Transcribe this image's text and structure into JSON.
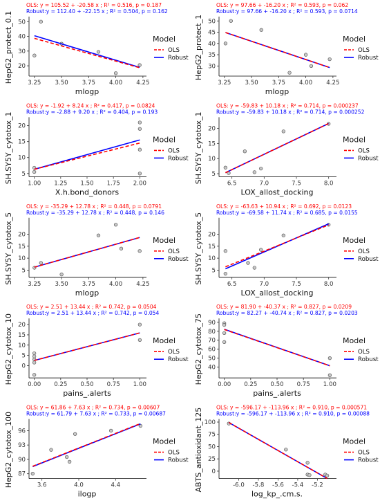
{
  "colors": {
    "ols": "#ff0000",
    "robust": "#0000ff",
    "point_fill": "#c8c8c8",
    "point_stroke": "#555555"
  },
  "chart_data": [
    {
      "type": "scatter",
      "ols_eq": "OLS: y = 105.52 + -20.58 x ; R² = 0.516, p = 0.187",
      "robust_eq": "Robust:y = 112.40 + -22.15 x ; R² = 0.504, p = 0.162",
      "xlabel": "mlogp",
      "ylabel": "HepG2_protect_0.1",
      "xlim": [
        3.2,
        4.27
      ],
      "ylim": [
        13,
        52
      ],
      "xticks": [
        {
          "v": 3.25,
          "label": "3.25"
        },
        {
          "v": 3.5,
          "label": "3.50"
        },
        {
          "v": 3.75,
          "label": "3.75"
        },
        {
          "v": 4.0,
          "label": "4.00"
        },
        {
          "v": 4.25,
          "label": "4.25"
        }
      ],
      "yticks": [
        {
          "v": 20,
          "label": "20"
        },
        {
          "v": 30,
          "label": "30"
        },
        {
          "v": 40,
          "label": "40"
        },
        {
          "v": 50,
          "label": "50"
        }
      ],
      "points": [
        [
          3.25,
          27
        ],
        [
          3.31,
          50
        ],
        [
          3.5,
          35
        ],
        [
          3.84,
          29.5
        ],
        [
          4.0,
          15
        ],
        [
          4.22,
          20.5
        ]
      ],
      "ols": [
        105.52,
        -20.58
      ],
      "robust": [
        112.4,
        -22.15
      ],
      "xrange": [
        3.25,
        4.22
      ],
      "legend": {
        "title": "Model",
        "items": [
          "OLS",
          "Robust"
        ]
      }
    },
    {
      "type": "scatter",
      "ols_eq": "OLS: y = 97.66 + -16.20 x ; R² = 0.593, p = 0.062",
      "robust_eq": "Robust:y = 97.66 + -16.20 x ; R² = 0.593, p = 0.0714",
      "xlabel": "mlogp",
      "ylabel": "HepG2_protect_1",
      "xlim": [
        3.2,
        4.27
      ],
      "ylim": [
        25.5,
        51
      ],
      "xticks": [
        {
          "v": 3.25,
          "label": "3.25"
        },
        {
          "v": 3.5,
          "label": "3.50"
        },
        {
          "v": 3.75,
          "label": "3.75"
        },
        {
          "v": 4.0,
          "label": "4.00"
        },
        {
          "v": 4.25,
          "label": "4.25"
        }
      ],
      "yticks": [
        {
          "v": 30,
          "label": "30"
        },
        {
          "v": 35,
          "label": "35"
        },
        {
          "v": 40,
          "label": "40"
        },
        {
          "v": 45,
          "label": "45"
        },
        {
          "v": 50,
          "label": "50"
        }
      ],
      "points": [
        [
          3.26,
          40
        ],
        [
          3.31,
          50
        ],
        [
          3.59,
          46
        ],
        [
          3.85,
          27
        ],
        [
          4.0,
          35
        ],
        [
          4.05,
          30
        ],
        [
          4.22,
          33
        ]
      ],
      "ols": [
        97.66,
        -16.2
      ],
      "robust": [
        97.66,
        -16.2
      ],
      "xrange": [
        3.26,
        4.22
      ],
      "legend": {
        "title": "Model",
        "items": [
          "OLS",
          "Robust"
        ]
      }
    },
    {
      "type": "scatter",
      "ols_eq": "OLS: y = -1.92 + 8.24 x ; R² = 0.417, p = 0.0824",
      "robust_eq": "Robust:y = -2.88 + 9.20 x ; R² = 0.404, p = 0.193",
      "xlabel": "X.h.bond_donors",
      "ylabel": "SH.SY5Y_cytotox_1",
      "xlim": [
        0.95,
        2.05
      ],
      "ylim": [
        4,
        22
      ],
      "xticks": [
        {
          "v": 1.0,
          "label": "1.00"
        },
        {
          "v": 1.25,
          "label": "1.25"
        },
        {
          "v": 1.5,
          "label": "1.50"
        },
        {
          "v": 1.75,
          "label": "1.75"
        },
        {
          "v": 2.0,
          "label": "2.00"
        }
      ],
      "yticks": [
        {
          "v": 5,
          "label": "5"
        },
        {
          "v": 10,
          "label": "10"
        },
        {
          "v": 15,
          "label": "15"
        },
        {
          "v": 20,
          "label": "20"
        }
      ],
      "points": [
        [
          1.0,
          5.5
        ],
        [
          1.0,
          6.8
        ],
        [
          2.0,
          21
        ],
        [
          2.0,
          19
        ],
        [
          2.0,
          12.5
        ],
        [
          2.0,
          5
        ]
      ],
      "ols": [
        -1.92,
        8.24
      ],
      "robust": [
        -2.88,
        9.2
      ],
      "xrange": [
        1.0,
        2.0
      ],
      "legend": {
        "title": "Model",
        "items": [
          "OLS",
          "Robust"
        ]
      }
    },
    {
      "type": "scatter",
      "ols_eq": "OLS: y = -59.83 + 10.18 x ; R² = 0.714, p = 0.000237",
      "robust_eq": "Robust:y = -59.83 + 10.18 x ; R² = 0.714, p = 0.000252",
      "xlabel": "LOX_allost_docking",
      "ylabel": "SH.SY5Y_cytotox_1",
      "xlim": [
        6.3,
        8.1
      ],
      "ylim": [
        4,
        23
      ],
      "xticks": [
        {
          "v": 6.5,
          "label": "6.5"
        },
        {
          "v": 7.0,
          "label": "7.0"
        },
        {
          "v": 7.5,
          "label": "7.5"
        },
        {
          "v": 8.0,
          "label": "8.0"
        }
      ],
      "yticks": [
        {
          "v": 5,
          "label": "5"
        },
        {
          "v": 10,
          "label": "10"
        },
        {
          "v": 15,
          "label": "15"
        },
        {
          "v": 20,
          "label": "20"
        }
      ],
      "points": [
        [
          6.4,
          7
        ],
        [
          6.45,
          5.2
        ],
        [
          6.7,
          12.4
        ],
        [
          6.85,
          5.5
        ],
        [
          6.95,
          6.7
        ],
        [
          7.3,
          19
        ],
        [
          8.0,
          21.5
        ]
      ],
      "ols": [
        -59.83,
        10.18
      ],
      "robust": [
        -59.83,
        10.18
      ],
      "xrange": [
        6.4,
        8.0
      ],
      "legend": {
        "title": "Model",
        "items": [
          "OLS",
          "Robust"
        ]
      }
    },
    {
      "type": "scatter",
      "ols_eq": "OLS: y = -35.29 + 12.78 x ; R² = 0.448, p = 0.0791",
      "robust_eq": "Robust:y = -35.29 + 12.78 x ; R² = 0.448, p = 0.146",
      "xlabel": "mlogp",
      "ylabel": "SH.SY5Y_cytotox_5",
      "xlim": [
        3.2,
        4.27
      ],
      "ylim": [
        2,
        26
      ],
      "xticks": [
        {
          "v": 3.25,
          "label": "3.25"
        },
        {
          "v": 3.5,
          "label": "3.50"
        },
        {
          "v": 3.75,
          "label": "3.75"
        },
        {
          "v": 4.0,
          "label": "4.00"
        },
        {
          "v": 4.25,
          "label": "4.25"
        }
      ],
      "yticks": [
        {
          "v": 5,
          "label": "5"
        },
        {
          "v": 10,
          "label": "10"
        },
        {
          "v": 15,
          "label": "15"
        },
        {
          "v": 20,
          "label": "20"
        }
      ],
      "points": [
        [
          3.25,
          6
        ],
        [
          3.31,
          8
        ],
        [
          3.5,
          3.2
        ],
        [
          3.84,
          19.5
        ],
        [
          4.0,
          24
        ],
        [
          4.05,
          14
        ],
        [
          4.22,
          13
        ]
      ],
      "ols": [
        -35.29,
        12.78
      ],
      "robust": [
        -35.29,
        12.78
      ],
      "xrange": [
        3.25,
        4.22
      ],
      "legend": {
        "title": "Model",
        "items": [
          "OLS",
          "Robust"
        ]
      }
    },
    {
      "type": "scatter",
      "ols_eq": "OLS: y = -63.63 + 10.94 x ; R² = 0.692, p = 0.0123",
      "robust_eq": "Robust:y = -69.58 + 11.74 x ; R² = 0.685, p = 0.0155",
      "xlabel": "LOX_allost_docking",
      "ylabel": "SH.SY5Y_cytotox_5",
      "xlim": [
        6.3,
        8.1
      ],
      "ylim": [
        2,
        26
      ],
      "xticks": [
        {
          "v": 6.5,
          "label": "6.5"
        },
        {
          "v": 7.0,
          "label": "7.0"
        },
        {
          "v": 7.5,
          "label": "7.5"
        },
        {
          "v": 8.0,
          "label": "8.0"
        }
      ],
      "yticks": [
        {
          "v": 5,
          "label": "5"
        },
        {
          "v": 10,
          "label": "10"
        },
        {
          "v": 15,
          "label": "15"
        },
        {
          "v": 20,
          "label": "20"
        }
      ],
      "points": [
        [
          6.4,
          13
        ],
        [
          6.4,
          3.5
        ],
        [
          6.75,
          8
        ],
        [
          6.85,
          6
        ],
        [
          6.95,
          13.5
        ],
        [
          7.3,
          19.5
        ],
        [
          8.0,
          24
        ]
      ],
      "ols": [
        -63.63,
        10.94
      ],
      "robust": [
        -69.58,
        11.74
      ],
      "xrange": [
        6.4,
        8.0
      ],
      "legend": {
        "title": "Model",
        "items": [
          "OLS",
          "Robust"
        ]
      }
    },
    {
      "type": "scatter",
      "ols_eq": "OLS: y = 2.51 + 13.44 x ; R² = 0.742, p = 0.0504",
      "robust_eq": "Robust:y = 2.51 + 13.44 x ; R² = 0.742, p = 0.054",
      "xlabel": "pains_.alerts",
      "ylabel": "HepG2_cytotox_10",
      "xlim": [
        -0.05,
        1.05
      ],
      "ylim": [
        -6,
        22
      ],
      "xticks": [
        {
          "v": 0.0,
          "label": "0.00"
        },
        {
          "v": 0.25,
          "label": "0.25"
        },
        {
          "v": 0.5,
          "label": "0.50"
        },
        {
          "v": 0.75,
          "label": "0.75"
        },
        {
          "v": 1.0,
          "label": "1.00"
        }
      ],
      "yticks": [
        {
          "v": 0,
          "label": "0"
        },
        {
          "v": 5,
          "label": "5"
        },
        {
          "v": 10,
          "label": "10"
        },
        {
          "v": 15,
          "label": "15"
        },
        {
          "v": 20,
          "label": "20"
        }
      ],
      "points": [
        [
          0.0,
          6
        ],
        [
          0.0,
          4.5
        ],
        [
          0.0,
          3
        ],
        [
          0.0,
          1.5
        ],
        [
          0.0,
          -4.5
        ],
        [
          1.0,
          20
        ],
        [
          1.0,
          12.5
        ]
      ],
      "ols": [
        2.51,
        13.44
      ],
      "robust": [
        2.51,
        13.44
      ],
      "xrange": [
        0.0,
        1.0
      ],
      "legend": {
        "title": "Model",
        "items": [
          "OLS",
          "Robust"
        ]
      }
    },
    {
      "type": "scatter",
      "ols_eq": "OLS: y = 81.90 + -40.37 x ; R² = 0.827, p = 0.0209",
      "robust_eq": "Robust:y = 82.27 + -40.74 x ; R² = 0.827, p = 0.0203",
      "xlabel": "pains_.alerts",
      "ylabel": "HepG2_cytotox_75",
      "xlim": [
        -0.05,
        1.05
      ],
      "ylim": [
        28,
        92
      ],
      "xticks": [
        {
          "v": 0.0,
          "label": "0.00"
        },
        {
          "v": 0.25,
          "label": "0.25"
        },
        {
          "v": 0.5,
          "label": "0.50"
        },
        {
          "v": 0.75,
          "label": "0.75"
        },
        {
          "v": 1.0,
          "label": "1.00"
        }
      ],
      "yticks": [
        {
          "v": 40,
          "label": "40"
        },
        {
          "v": 50,
          "label": "50"
        },
        {
          "v": 60,
          "label": "60"
        },
        {
          "v": 70,
          "label": "70"
        },
        {
          "v": 80,
          "label": "80"
        },
        {
          "v": 90,
          "label": "90"
        }
      ],
      "points": [
        [
          0.0,
          89
        ],
        [
          0.0,
          87
        ],
        [
          0.0,
          78
        ],
        [
          0.0,
          68
        ],
        [
          1.0,
          50
        ],
        [
          1.0,
          31
        ]
      ],
      "ols": [
        81.9,
        -40.37
      ],
      "robust": [
        82.27,
        -40.74
      ],
      "xrange": [
        0.0,
        1.0
      ],
      "legend": {
        "title": "Model",
        "items": [
          "OLS",
          "Robust"
        ]
      }
    },
    {
      "type": "scatter",
      "ols_eq": "OLS: y = 61.86 + 7.63 x ; R² = 0.734, p = 0.00607",
      "robust_eq": "Robust:y = 61.79 + 7.63 x ; R² = 0.733, p = 0.00687",
      "xlabel": "ilogp",
      "ylabel": "HepG2_cytotox_100",
      "xlim": [
        3.46,
        4.72
      ],
      "ylim": [
        86,
        98
      ],
      "xticks": [
        {
          "v": 3.6,
          "label": "3.6"
        },
        {
          "v": 4.0,
          "label": "4.0"
        },
        {
          "v": 4.4,
          "label": "4.4"
        }
      ],
      "yticks": [
        {
          "v": 87,
          "label": "87"
        },
        {
          "v": 90,
          "label": "90"
        },
        {
          "v": 93,
          "label": "93"
        },
        {
          "v": 96,
          "label": "96"
        }
      ],
      "points": [
        [
          3.5,
          87
        ],
        [
          3.7,
          92
        ],
        [
          3.87,
          90.5
        ],
        [
          3.9,
          89.5
        ],
        [
          3.96,
          95.3
        ],
        [
          4.35,
          96
        ],
        [
          4.67,
          97
        ]
      ],
      "ols": [
        61.86,
        7.63
      ],
      "robust": [
        61.79,
        7.63
      ],
      "xrange": [
        3.5,
        4.67
      ],
      "legend": {
        "title": "Model",
        "items": [
          "OLS",
          "Robust"
        ]
      }
    },
    {
      "type": "scatter",
      "ols_eq": "OLS: y = -596.17 + -113.96 x ; R² = 0.910, p = 0.000571",
      "robust_eq": "Robust:y = -596.17 + -113.96 x ; R² = 0.910, p = 0.00088",
      "xlabel": "log_kp_.cm.s.",
      "ylabel": "ABTS_antioxidant_125",
      "xlim": [
        -6.2,
        -5.02
      ],
      "ylim": [
        -15,
        102
      ],
      "xticks": [
        {
          "v": -6.0,
          "label": "-6.0"
        },
        {
          "v": -5.8,
          "label": "-5.8"
        },
        {
          "v": -5.6,
          "label": "-5.6"
        },
        {
          "v": -5.4,
          "label": "-5.4"
        },
        {
          "v": -5.2,
          "label": "-5.2"
        }
      ],
      "yticks": [
        {
          "v": 0,
          "label": "0"
        },
        {
          "v": 25,
          "label": "25"
        },
        {
          "v": 50,
          "label": "50"
        },
        {
          "v": 75,
          "label": "75"
        },
        {
          "v": 100,
          "label": "100"
        }
      ],
      "points": [
        [
          -6.1,
          97
        ],
        [
          -5.52,
          44
        ],
        [
          -5.3,
          17
        ],
        [
          -5.3,
          -7
        ],
        [
          -5.28,
          -8
        ],
        [
          -5.12,
          -7
        ],
        [
          -5.1,
          -9
        ]
      ],
      "ols": [
        -596.17,
        -113.96
      ],
      "robust": [
        -596.17,
        -113.96
      ],
      "xrange": [
        -6.1,
        -5.1
      ],
      "legend": {
        "title": "Model",
        "items": [
          "OLS",
          "Robust"
        ]
      }
    }
  ]
}
